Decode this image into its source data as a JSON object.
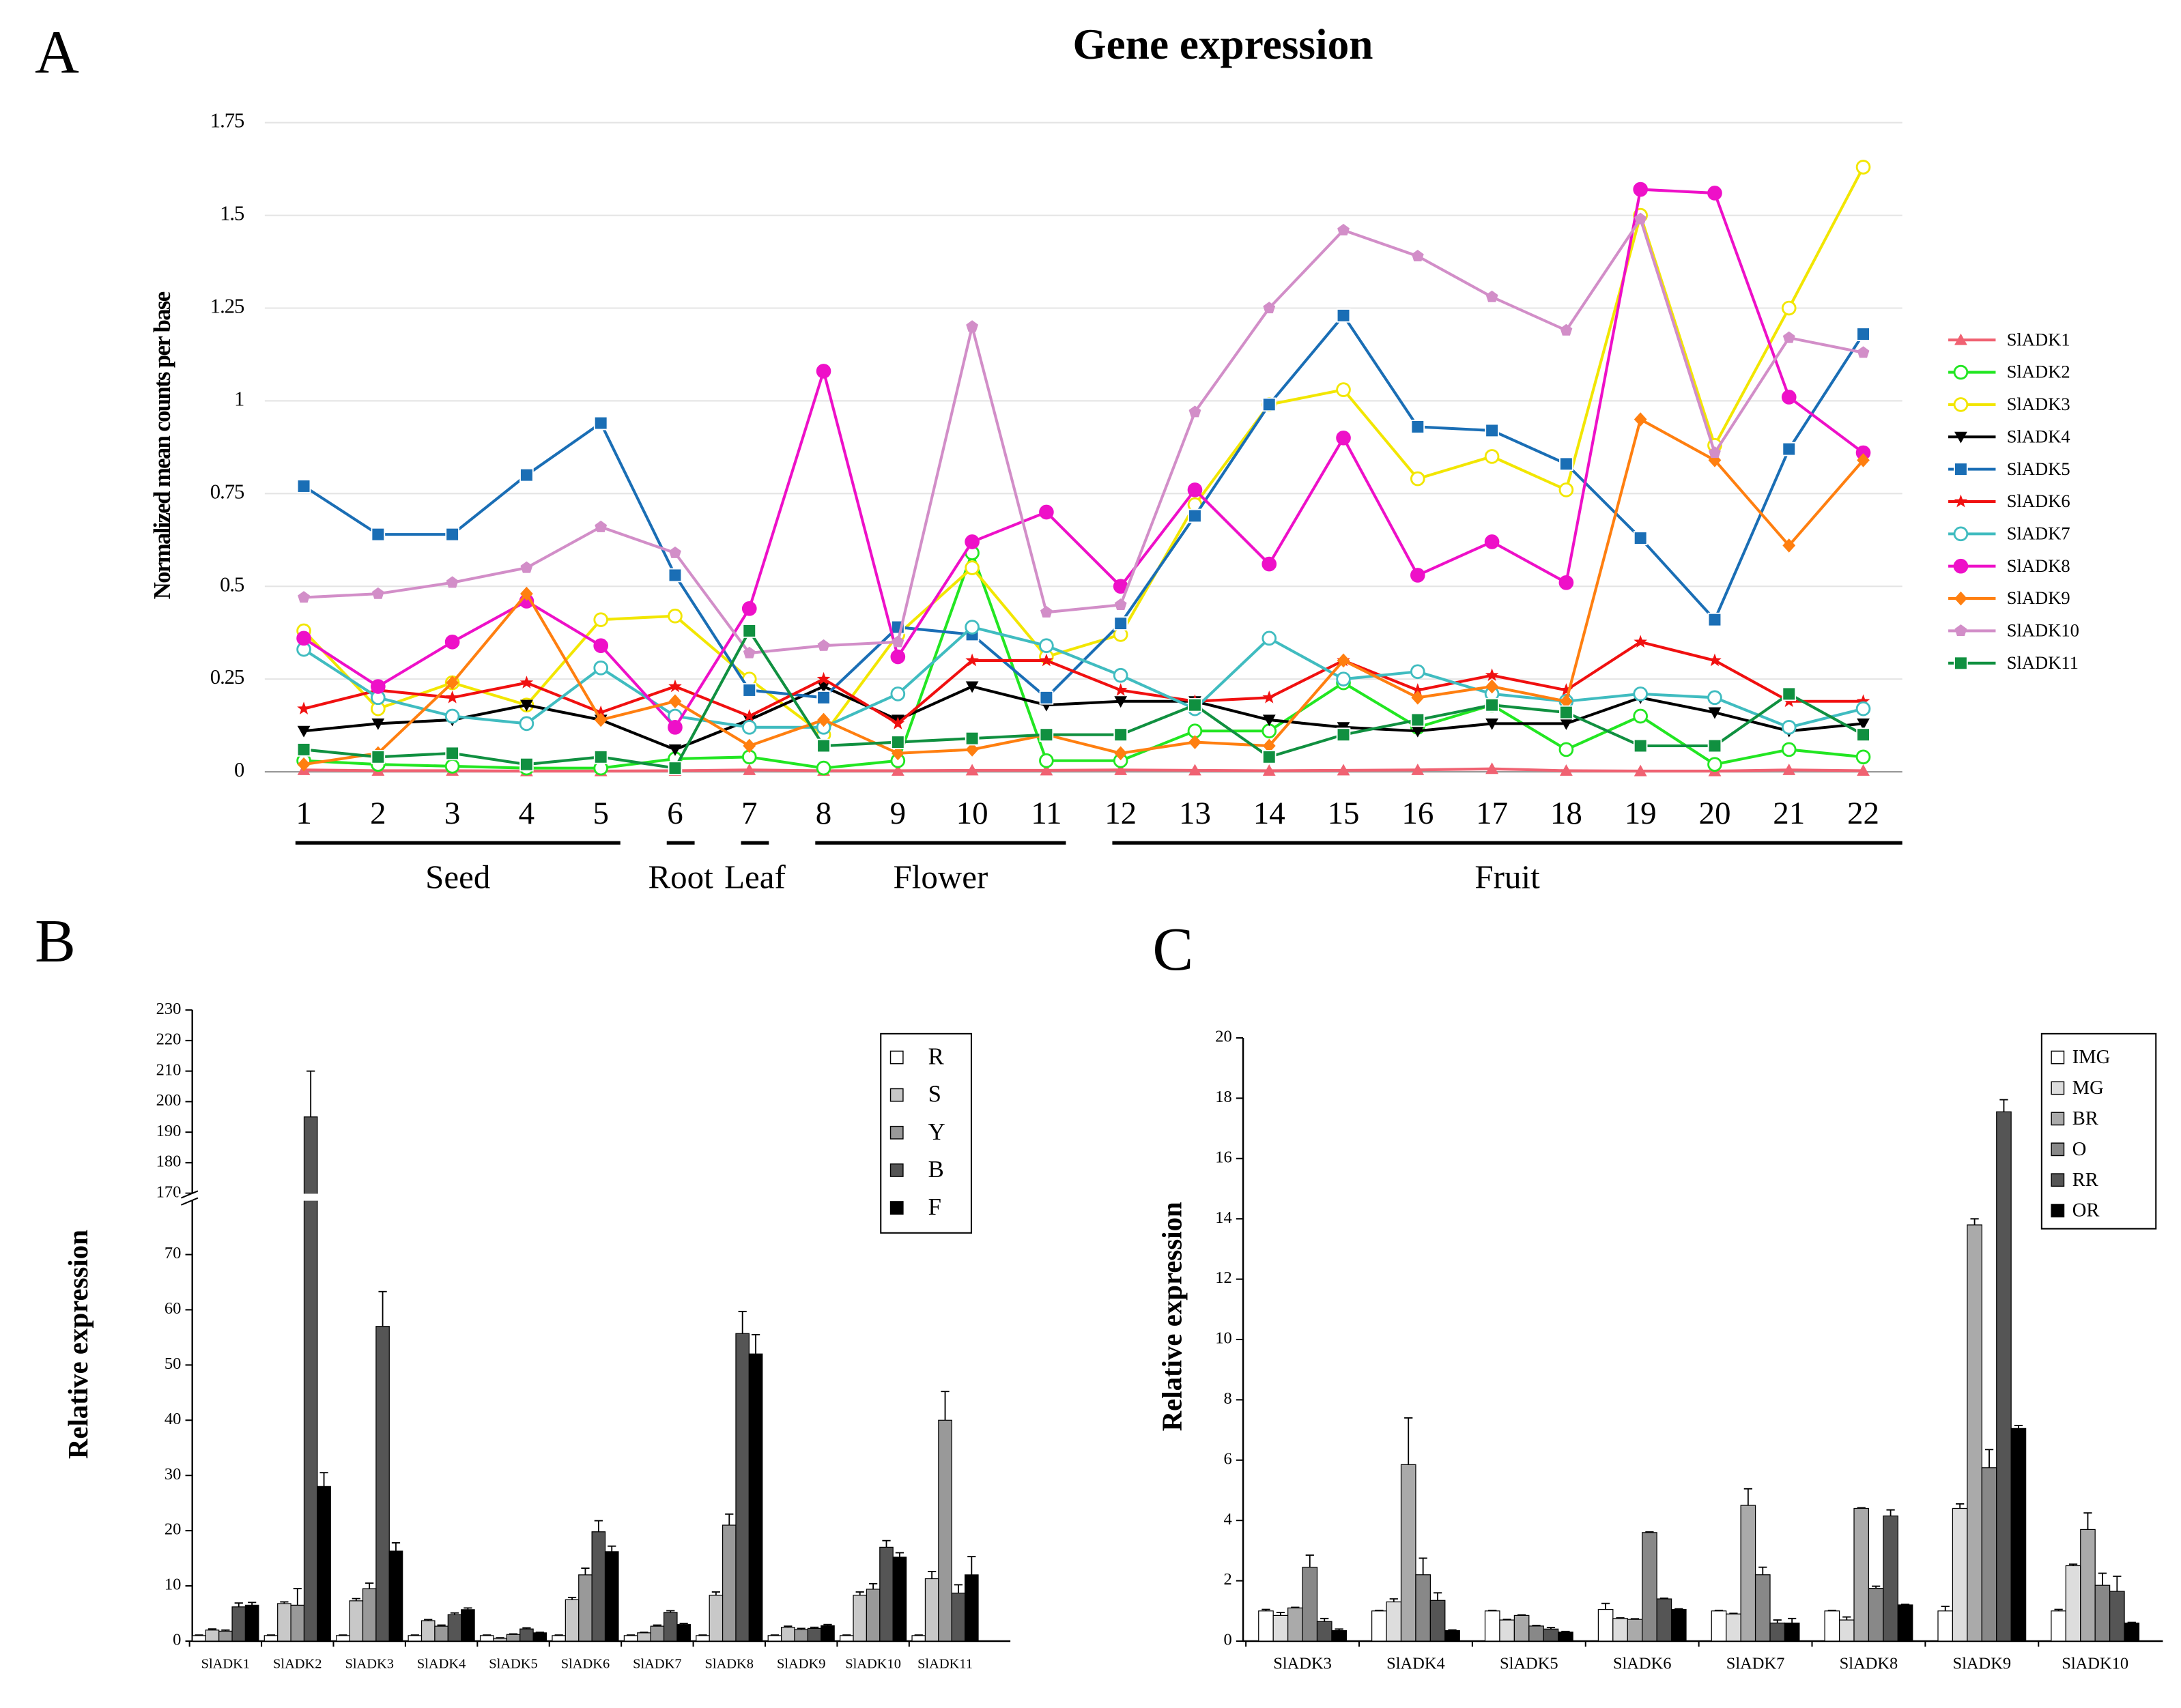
{
  "chart_data": [
    {
      "type": "line",
      "panel": "A",
      "title": "Gene expression",
      "y_label": "Normalized mean counts per base",
      "categories": [
        "1",
        "2",
        "3",
        "4",
        "5",
        "6",
        "7",
        "8",
        "9",
        "10",
        "11",
        "12",
        "13",
        "14",
        "15",
        "16",
        "17",
        "18",
        "19",
        "20",
        "21",
        "22"
      ],
      "groups": [
        "Seed",
        "Seed",
        "Seed",
        "Seed",
        "Seed",
        "Root",
        "Leaf",
        "Flower",
        "Flower",
        "Flower",
        "Flower",
        "Fruit",
        "Fruit",
        "Fruit",
        "Fruit",
        "Fruit",
        "Fruit",
        "Fruit",
        "Fruit",
        "Fruit",
        "Fruit",
        "Fruit"
      ],
      "ylim": [
        0,
        1.75
      ],
      "yticks": [
        0,
        0.25,
        0.5,
        0.75,
        1,
        1.25,
        1.5,
        1.75
      ],
      "grid": true,
      "legend": "right",
      "series": [
        {
          "name": "SlADK1",
          "color": "#f06272",
          "marker": "triangle",
          "values": [
            0.005,
            0.003,
            0.003,
            0.002,
            0.002,
            0.003,
            0.005,
            0.003,
            0.003,
            0.004,
            0.004,
            0.005,
            0.004,
            0.003,
            0.004,
            0.005,
            0.008,
            0.003,
            0.002,
            0.002,
            0.005,
            0.003
          ]
        },
        {
          "name": "SlADK2",
          "color": "#22e622",
          "marker": "circle-open",
          "values": [
            0.03,
            0.02,
            0.015,
            0.01,
            0.01,
            0.035,
            0.04,
            0.01,
            0.03,
            0.59,
            0.03,
            0.03,
            0.11,
            0.11,
            0.24,
            0.12,
            0.18,
            0.06,
            0.15,
            0.02,
            0.06,
            0.04
          ]
        },
        {
          "name": "SlADK3",
          "color": "#f2e600",
          "marker": "circle-open",
          "values": [
            0.38,
            0.17,
            0.24,
            0.18,
            0.41,
            0.42,
            0.25,
            0.1,
            0.37,
            0.55,
            0.31,
            0.37,
            0.72,
            0.99,
            1.03,
            0.79,
            0.85,
            0.76,
            1.5,
            0.88,
            1.25,
            1.63
          ]
        },
        {
          "name": "SlADK4",
          "color": "#000000",
          "marker": "triangle-down",
          "values": [
            0.11,
            0.13,
            0.14,
            0.18,
            0.14,
            0.06,
            0.14,
            0.23,
            0.14,
            0.23,
            0.18,
            0.19,
            0.19,
            0.14,
            0.12,
            0.11,
            0.13,
            0.13,
            0.2,
            0.16,
            0.11,
            0.13
          ]
        },
        {
          "name": "SlADK5",
          "color": "#1a6eb5",
          "marker": "square",
          "values": [
            0.77,
            0.64,
            0.64,
            0.8,
            0.94,
            0.53,
            0.22,
            0.2,
            0.39,
            0.37,
            0.2,
            0.4,
            0.69,
            0.99,
            1.23,
            0.93,
            0.92,
            0.83,
            0.63,
            0.41,
            0.87,
            1.18
          ]
        },
        {
          "name": "SlADK6",
          "color": "#f01010",
          "marker": "star",
          "values": [
            0.17,
            0.22,
            0.2,
            0.24,
            0.16,
            0.23,
            0.15,
            0.25,
            0.13,
            0.3,
            0.3,
            0.22,
            0.19,
            0.2,
            0.3,
            0.22,
            0.26,
            0.22,
            0.35,
            0.3,
            0.19,
            0.19
          ]
        },
        {
          "name": "SlADK7",
          "color": "#40bcc0",
          "marker": "circle-open",
          "values": [
            0.33,
            0.2,
            0.15,
            0.13,
            0.28,
            0.15,
            0.12,
            0.12,
            0.21,
            0.39,
            0.34,
            0.26,
            0.17,
            0.36,
            0.25,
            0.27,
            0.21,
            0.19,
            0.21,
            0.2,
            0.12,
            0.17
          ]
        },
        {
          "name": "SlADK8",
          "color": "#ee10c8",
          "marker": "circle",
          "values": [
            0.36,
            0.23,
            0.35,
            0.46,
            0.34,
            0.12,
            0.44,
            1.08,
            0.31,
            0.62,
            0.7,
            0.5,
            0.76,
            0.56,
            0.9,
            0.53,
            0.62,
            0.51,
            1.57,
            1.56,
            1.01,
            0.86
          ]
        },
        {
          "name": "SlADK9",
          "color": "#ff7f10",
          "marker": "diamond",
          "values": [
            0.02,
            0.05,
            0.24,
            0.48,
            0.14,
            0.19,
            0.07,
            0.14,
            0.05,
            0.06,
            0.1,
            0.05,
            0.08,
            0.07,
            0.3,
            0.2,
            0.23,
            0.19,
            0.95,
            0.84,
            0.61,
            0.84
          ]
        },
        {
          "name": "SlADK10",
          "color": "#d28ec8",
          "marker": "pentagon",
          "values": [
            0.47,
            0.48,
            0.51,
            0.55,
            0.66,
            0.59,
            0.32,
            0.34,
            0.35,
            1.2,
            0.43,
            0.45,
            0.97,
            1.25,
            1.46,
            1.39,
            1.28,
            1.19,
            1.49,
            0.86,
            1.17,
            1.13
          ]
        },
        {
          "name": "SlADK11",
          "color": "#109040",
          "marker": "square",
          "values": [
            0.06,
            0.04,
            0.05,
            0.02,
            0.04,
            0.01,
            0.38,
            0.07,
            0.08,
            0.09,
            0.1,
            0.1,
            0.18,
            0.04,
            0.1,
            0.14,
            0.18,
            0.16,
            0.07,
            0.07,
            0.21,
            0.1
          ]
        }
      ]
    },
    {
      "type": "bar",
      "panel": "B",
      "y_label": "Relative expression",
      "categories": [
        "SlADK1",
        "SlADK2",
        "SlADK3",
        "SlADK4",
        "SlADK5",
        "SlADK6",
        "SlADK7",
        "SlADK8",
        "SlADK9",
        "SlADK10",
        "SlADK11"
      ],
      "ylim": [
        0,
        230
      ],
      "ybreak": [
        80,
        168
      ],
      "yticks": [
        0,
        10,
        20,
        30,
        40,
        50,
        60,
        70,
        170,
        180,
        190,
        200,
        210,
        220,
        230
      ],
      "legend": "upper right",
      "series": [
        {
          "name": "R",
          "color": "#ffffff",
          "values": [
            1,
            1,
            1,
            1,
            1,
            1,
            1,
            1,
            1,
            1,
            1
          ],
          "errors": [
            0.1,
            0.1,
            0.1,
            0.1,
            0.1,
            0.1,
            0.1,
            0.1,
            0.1,
            0.1,
            0.1
          ]
        },
        {
          "name": "S",
          "color": "#c8c8c8",
          "values": [
            2,
            6.8,
            7.3,
            3.7,
            0.5,
            7.5,
            1.5,
            8.3,
            2.5,
            8.3,
            11.3
          ],
          "errors": [
            0.2,
            0.3,
            0.4,
            0.2,
            0.1,
            0.4,
            0.1,
            0.6,
            0.2,
            0.6,
            1.3
          ]
        },
        {
          "name": "Y",
          "color": "#999999",
          "values": [
            1.8,
            6.5,
            9.5,
            2.7,
            1.2,
            12,
            2.7,
            21,
            2.1,
            9.4,
            40
          ],
          "errors": [
            0.2,
            3,
            1,
            0.2,
            0.1,
            1.2,
            0.2,
            2,
            0.2,
            1,
            5.2
          ]
        },
        {
          "name": "B",
          "color": "#555555",
          "values": [
            6.2,
            195,
            57,
            4.8,
            2.2,
            19.8,
            5.2,
            55.7,
            2.3,
            17,
            8.7
          ],
          "errors": [
            0.7,
            15,
            6.3,
            0.3,
            0.2,
            2,
            0.3,
            4,
            0.2,
            1.2,
            1.5
          ]
        },
        {
          "name": "F",
          "color": "#000000",
          "values": [
            6.5,
            28,
            16.3,
            5.7,
            1.5,
            16.2,
            3,
            52,
            2.8,
            15.2,
            12
          ],
          "errors": [
            0.5,
            2.5,
            1.5,
            0.3,
            0.1,
            1,
            0.2,
            3.5,
            0.2,
            0.8,
            3.3
          ]
        }
      ]
    },
    {
      "type": "bar",
      "panel": "C",
      "y_label": "Relative expression",
      "categories": [
        "SlADK3",
        "SlADK4",
        "SlADK5",
        "SlADK6",
        "SlADK7",
        "SlADK8",
        "SlADK9",
        "SlADK10"
      ],
      "ylim": [
        0,
        20
      ],
      "yticks": [
        0,
        2,
        4,
        6,
        8,
        10,
        12,
        14,
        16,
        18,
        20
      ],
      "legend": "upper right",
      "series": [
        {
          "name": "IMG",
          "color": "#ffffff",
          "values": [
            1.0,
            1.0,
            1.0,
            1.05,
            1.0,
            1.0,
            1.0,
            1.0
          ],
          "errors": [
            0.05,
            0.02,
            0.02,
            0.2,
            0.02,
            0.02,
            0.15,
            0.05
          ]
        },
        {
          "name": "MG",
          "color": "#dddddd",
          "values": [
            0.85,
            1.3,
            0.7,
            0.75,
            0.9,
            0.7,
            4.4,
            2.5
          ],
          "errors": [
            0.1,
            0.1,
            0.02,
            0.02,
            0.02,
            0.1,
            0.15,
            0.05
          ]
        },
        {
          "name": "BR",
          "color": "#aaaaaa",
          "values": [
            1.1,
            5.85,
            0.85,
            0.72,
            4.5,
            4.4,
            13.8,
            3.7
          ],
          "errors": [
            0.02,
            1.55,
            0.02,
            0.02,
            0.55,
            0.02,
            0.2,
            0.55
          ]
        },
        {
          "name": "O",
          "color": "#888888",
          "values": [
            2.45,
            2.2,
            0.5,
            3.6,
            2.2,
            1.75,
            5.75,
            1.85
          ],
          "errors": [
            0.4,
            0.55,
            0.02,
            0.02,
            0.25,
            0.07,
            0.6,
            0.4
          ]
        },
        {
          "name": "RR",
          "color": "#555555",
          "values": [
            0.65,
            1.35,
            0.4,
            1.4,
            0.6,
            4.15,
            17.55,
            1.65
          ],
          "errors": [
            0.1,
            0.25,
            0.05,
            0.02,
            0.1,
            0.2,
            0.4,
            0.5
          ]
        },
        {
          "name": "OR",
          "color": "#000000",
          "values": [
            0.35,
            0.35,
            0.3,
            1.05,
            0.6,
            1.2,
            7.05,
            0.6
          ],
          "errors": [
            0.05,
            0.02,
            0.02,
            0.02,
            0.15,
            0.02,
            0.1,
            0.02
          ]
        }
      ]
    }
  ]
}
